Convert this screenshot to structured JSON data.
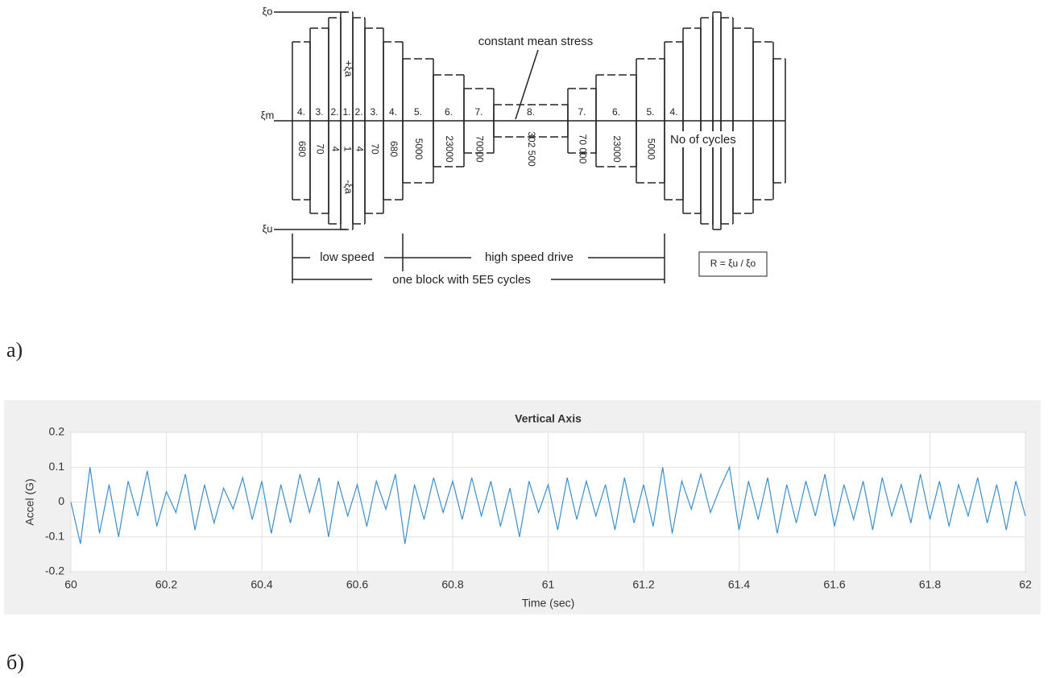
{
  "diagram": {
    "stress_labels": [
      "ξo",
      "ξm",
      "ξu"
    ],
    "amplitude_labels": [
      "+ξa",
      "-ξa"
    ],
    "mean_label": "constant mean stress",
    "levels": [
      "4.",
      "3.",
      "2.",
      "1.",
      "2.",
      "3.",
      "4.",
      "5.",
      "6.",
      "7.",
      "8.",
      "7.",
      "6.",
      "5.",
      "4."
    ],
    "cycles": [
      "680",
      "70",
      "4",
      "1",
      "4",
      "70",
      "680",
      "5000",
      "23000",
      "70000",
      "302 500",
      "70 000",
      "23000",
      "5000"
    ],
    "cycles_axis": "No of cycles",
    "low_speed": "low speed",
    "high_speed": "high speed drive",
    "block": "one block with 5E5 cycles",
    "ratio": "R = ξu / ξo"
  },
  "caption_a": "а)",
  "caption_b": "б)",
  "chart_data": {
    "type": "line",
    "title": "Vertical Axis",
    "xlabel": "Time (sec)",
    "ylabel": "Accel (G)",
    "xlim": [
      60,
      62
    ],
    "ylim": [
      -0.2,
      0.2
    ],
    "xticks": [
      60,
      60.2,
      60.4,
      60.6,
      60.8,
      61,
      61.2,
      61.4,
      61.6,
      61.8,
      62
    ],
    "yticks": [
      -0.2,
      -0.1,
      0,
      0.1,
      0.2
    ],
    "grid": true,
    "series": [
      {
        "name": "Accel",
        "color": "#3a8fd0",
        "x": [
          60,
          60.02,
          60.04,
          60.06,
          60.08,
          60.1,
          60.12,
          60.14,
          60.16,
          60.18,
          60.2,
          60.22,
          60.24,
          60.26,
          60.28,
          60.3,
          60.32,
          60.34,
          60.36,
          60.38,
          60.4,
          60.42,
          60.44,
          60.46,
          60.48,
          60.5,
          60.52,
          60.54,
          60.56,
          60.58,
          60.6,
          60.62,
          60.64,
          60.66,
          60.68,
          60.7,
          60.72,
          60.74,
          60.76,
          60.78,
          60.8,
          60.82,
          60.84,
          60.86,
          60.88,
          60.9,
          60.92,
          60.94,
          60.96,
          60.98,
          61,
          61.02,
          61.04,
          61.06,
          61.08,
          61.1,
          61.12,
          61.14,
          61.16,
          61.18,
          61.2,
          61.22,
          61.24,
          61.26,
          61.28,
          61.3,
          61.32,
          61.34,
          61.36,
          61.38,
          61.4,
          61.42,
          61.44,
          61.46,
          61.48,
          61.5,
          61.52,
          61.54,
          61.56,
          61.58,
          61.6,
          61.62,
          61.64,
          61.66,
          61.68,
          61.7,
          61.72,
          61.74,
          61.76,
          61.78,
          61.8,
          61.82,
          61.84,
          61.86,
          61.88,
          61.9,
          61.92,
          61.94,
          61.96,
          61.98,
          62
        ],
        "values": [
          0,
          -0.12,
          0.1,
          -0.09,
          0.05,
          -0.1,
          0.06,
          -0.04,
          0.09,
          -0.07,
          0.03,
          -0.03,
          0.08,
          -0.08,
          0.05,
          -0.06,
          0.04,
          -0.02,
          0.07,
          -0.05,
          0.06,
          -0.09,
          0.05,
          -0.06,
          0.08,
          -0.03,
          0.07,
          -0.1,
          0.06,
          -0.04,
          0.05,
          -0.07,
          0.06,
          -0.02,
          0.08,
          -0.12,
          0.05,
          -0.05,
          0.07,
          -0.03,
          0.06,
          -0.05,
          0.07,
          -0.04,
          0.06,
          -0.07,
          0.04,
          -0.1,
          0.06,
          -0.03,
          0.05,
          -0.08,
          0.07,
          -0.05,
          0.06,
          -0.04,
          0.05,
          -0.08,
          0.07,
          -0.06,
          0.05,
          -0.07,
          0.1,
          -0.09,
          0.06,
          -0.02,
          0.08,
          -0.03,
          0.04,
          0.1,
          -0.08,
          0.06,
          -0.05,
          0.07,
          -0.09,
          0.05,
          -0.06,
          0.06,
          -0.04,
          0.08,
          -0.07,
          0.05,
          -0.05,
          0.06,
          -0.08,
          0.07,
          -0.04,
          0.05,
          -0.06,
          0.08,
          -0.05,
          0.06,
          -0.07,
          0.05,
          -0.04,
          0.07,
          -0.06,
          0.05,
          -0.08,
          0.06,
          -0.04
        ]
      }
    ]
  }
}
